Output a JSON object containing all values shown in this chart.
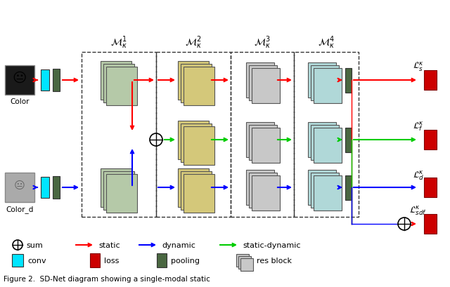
{
  "title": "",
  "fig_width": 6.4,
  "fig_height": 4.1,
  "bg_color": "#ffffff",
  "caption": "Figure 2.  SD-Net diagram showing a single-modal static",
  "colors": {
    "red": "#ff0000",
    "blue": "#0000ff",
    "green": "#00cc00",
    "dark_green": "#4a6741",
    "cyan": "#00e5ff",
    "loss_red": "#cc0000",
    "res_green": "#b5c9a8",
    "res_yellow": "#d4c87a",
    "res_blue": "#b0d8d8",
    "res_gray": "#c8c8c8",
    "dashed": "#333333"
  },
  "module_labels": [
    "$\\mathcal{M}^{1}_{\\kappa}$",
    "$\\mathcal{M}^{2}_{\\kappa}$",
    "$\\mathcal{M}^{3}_{\\kappa}$",
    "$\\mathcal{M}^{4}_{\\kappa}$"
  ],
  "loss_labels": [
    "$\\mathcal{L}^{\\kappa}_{s}$",
    "$\\mathcal{L}^{\\kappa}_{f}$",
    "$\\mathcal{L}^{\\kappa}_{d}$",
    "$\\mathcal{L}^{\\kappa}_{sdf}$"
  ],
  "legend_items": [
    {
      "symbol": "circle_plus",
      "label": "sum"
    },
    {
      "arrow_color": "#ff0000",
      "label": "static"
    },
    {
      "arrow_color": "#0000ff",
      "label": "dynamic"
    },
    {
      "arrow_color": "#00cc00",
      "label": "static-dynamic"
    }
  ],
  "legend_items2": [
    {
      "box_color": "#00e5ff",
      "label": "conv"
    },
    {
      "box_color": "#cc0000",
      "label": "loss"
    },
    {
      "box_color": "#4a6741",
      "label": "pooling"
    },
    {
      "box_color": "#c8c8c8",
      "label": "res block"
    }
  ]
}
